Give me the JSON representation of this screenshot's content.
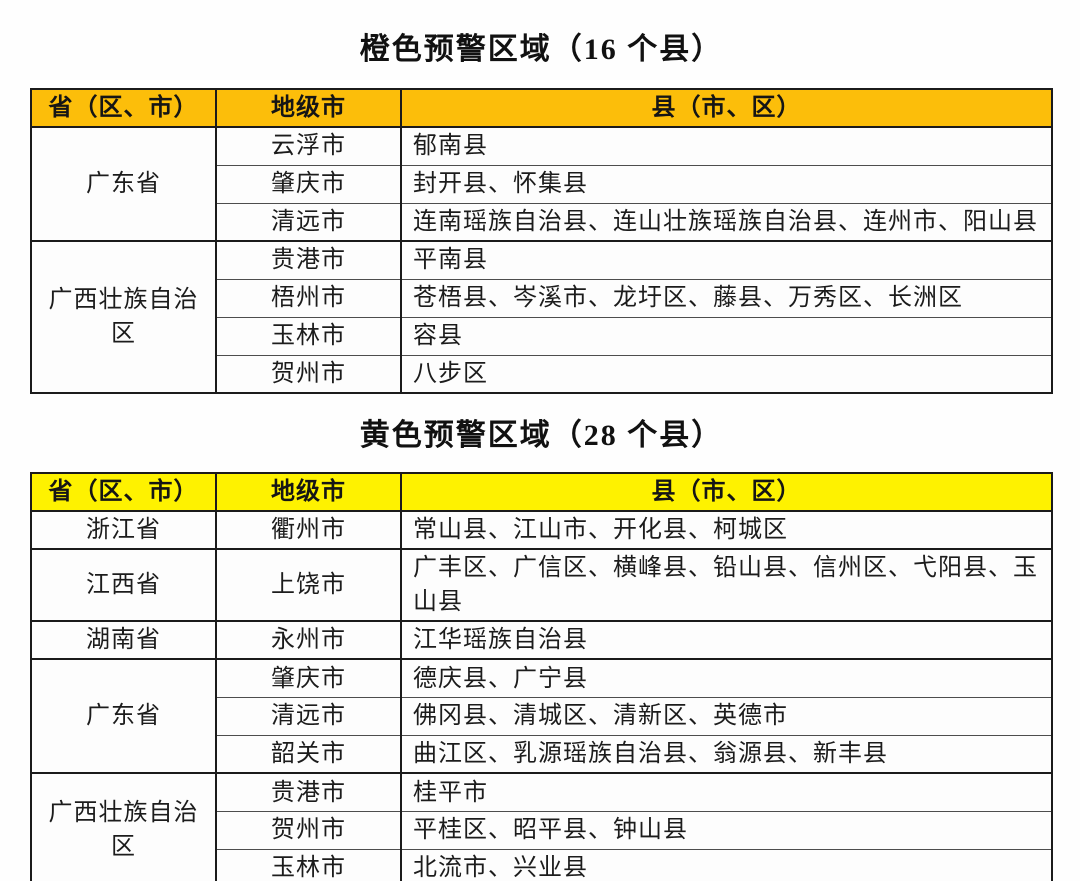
{
  "tables": [
    {
      "id": "orange-warning",
      "title": "橙色预警区域（16 个县）",
      "header_bg": "#FCBE0A",
      "headers": [
        "省（区、市）",
        "地级市",
        "县（市、区）"
      ],
      "groups": [
        {
          "province": "广东省",
          "rows": [
            {
              "city": "云浮市",
              "counties": "郁南县"
            },
            {
              "city": "肇庆市",
              "counties": "封开县、怀集县"
            },
            {
              "city": "清远市",
              "counties": "连南瑶族自治县、连山壮族瑶族自治县、连州市、阳山县"
            }
          ]
        },
        {
          "province": "广西壮族自治区",
          "rows": [
            {
              "city": "贵港市",
              "counties": "平南县"
            },
            {
              "city": "梧州市",
              "counties": "苍梧县、岑溪市、龙圩区、藤县、万秀区、长洲区"
            },
            {
              "city": "玉林市",
              "counties": "容县"
            },
            {
              "city": "贺州市",
              "counties": "八步区"
            }
          ]
        }
      ]
    },
    {
      "id": "yellow-warning",
      "title": "黄色预警区域（28 个县）",
      "header_bg": "#FEF200",
      "headers": [
        "省（区、市）",
        "地级市",
        "县（市、区）"
      ],
      "groups": [
        {
          "province": "浙江省",
          "rows": [
            {
              "city": "衢州市",
              "counties": "常山县、江山市、开化县、柯城区"
            }
          ]
        },
        {
          "province": "江西省",
          "rows": [
            {
              "city": "上饶市",
              "counties": "广丰区、广信区、横峰县、铅山县、信州区、弋阳县、玉山县"
            }
          ]
        },
        {
          "province": "湖南省",
          "rows": [
            {
              "city": "永州市",
              "counties": "江华瑶族自治县"
            }
          ]
        },
        {
          "province": "广东省",
          "rows": [
            {
              "city": "肇庆市",
              "counties": "德庆县、广宁县"
            },
            {
              "city": "清远市",
              "counties": "佛冈县、清城区、清新区、英德市"
            },
            {
              "city": "韶关市",
              "counties": "曲江区、乳源瑶族自治县、翁源县、新丰县"
            }
          ]
        },
        {
          "province": "广西壮族自治区",
          "rows": [
            {
              "city": "贵港市",
              "counties": "桂平市"
            },
            {
              "city": "贺州市",
              "counties": "平桂区、昭平县、钟山县"
            },
            {
              "city": "玉林市",
              "counties": "北流市、兴业县"
            }
          ]
        }
      ]
    }
  ]
}
